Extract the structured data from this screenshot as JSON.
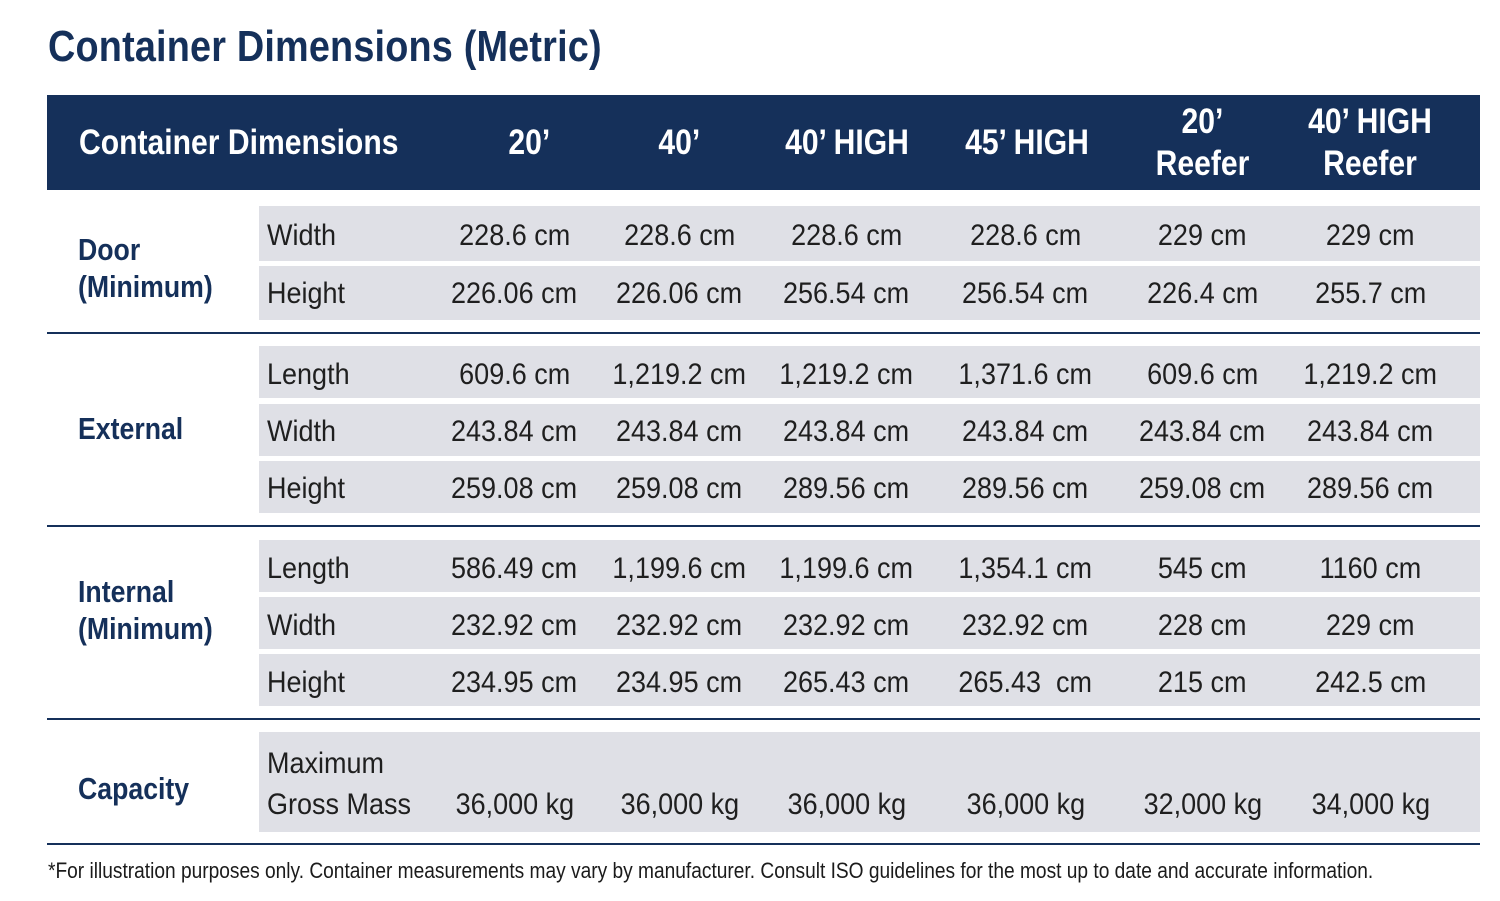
{
  "title": "Container Dimensions (Metric)",
  "header": {
    "label": "Container Dimensions",
    "columns": [
      "20’",
      "40’",
      "40’ HIGH",
      "45’ HIGH",
      "20’\nReefer",
      "40’ HIGH\nReefer"
    ]
  },
  "groups": [
    {
      "name": "Door\n(Minimum)",
      "rows": [
        {
          "label": "Width",
          "values": [
            "228.6 cm",
            "228.6 cm",
            "228.6 cm",
            "228.6 cm",
            "229 cm",
            "229 cm"
          ]
        },
        {
          "label": "Height",
          "values": [
            "226.06 cm",
            "226.06 cm",
            "256.54 cm",
            "256.54 cm",
            "226.4 cm",
            "255.7 cm"
          ]
        }
      ]
    },
    {
      "name": "External",
      "rows": [
        {
          "label": "Length",
          "values": [
            "609.6 cm",
            "1,219.2 cm",
            "1,219.2 cm",
            "1,371.6 cm",
            "609.6 cm",
            "1,219.2 cm"
          ]
        },
        {
          "label": "Width",
          "values": [
            "243.84 cm",
            "243.84 cm",
            "243.84 cm",
            "243.84 cm",
            "243.84 cm",
            "243.84 cm"
          ]
        },
        {
          "label": "Height",
          "values": [
            "259.08 cm",
            "259.08 cm",
            "289.56 cm",
            "289.56 cm",
            "259.08 cm",
            "289.56 cm"
          ]
        }
      ]
    },
    {
      "name": "Internal\n(Minimum)",
      "rows": [
        {
          "label": "Length",
          "values": [
            "586.49 cm",
            "1,199.6 cm",
            "1,199.6 cm",
            "1,354.1 cm",
            "545 cm",
            "1160 cm"
          ]
        },
        {
          "label": "Width",
          "values": [
            "232.92 cm",
            "232.92 cm",
            "232.92 cm",
            "232.92 cm",
            "228 cm",
            "229 cm"
          ]
        },
        {
          "label": "Height",
          "values": [
            "234.95 cm",
            "234.95 cm",
            "265.43 cm",
            "265.43  cm",
            "215 cm",
            "242.5 cm"
          ]
        }
      ]
    },
    {
      "name": "Capacity",
      "rows": [
        {
          "label_line1": "Maximum",
          "label_line2": "Gross Mass",
          "values": [
            "36,000 kg",
            "36,000 kg",
            "36,000 kg",
            "36,000 kg",
            "32,000 kg",
            "34,000 kg"
          ]
        }
      ]
    }
  ],
  "footnote": "*For illustration purposes only. Container measurements may vary by manufacturer. Consult ISO guidelines for the most up to date and accurate information.",
  "colors": {
    "navy": "#15305a",
    "band": "#dfe0e6"
  }
}
